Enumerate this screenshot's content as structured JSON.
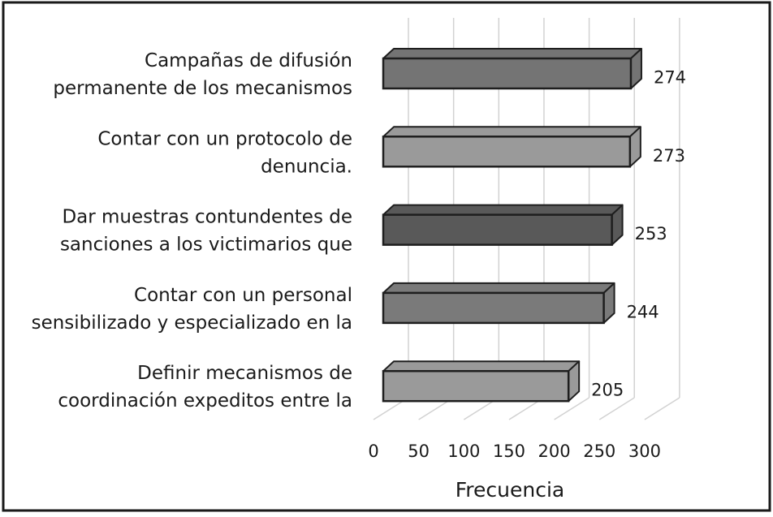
{
  "chart_data": {
    "type": "bar",
    "orientation": "horizontal",
    "style": "3d",
    "categories": [
      [
        "Campañas de difusión",
        "permanente de los mecanismos"
      ],
      [
        "Contar con un protocolo de",
        "denuncia."
      ],
      [
        "Dar muestras contundentes de",
        "sanciones a los victimarios que"
      ],
      [
        "Contar con un personal",
        "sensibilizado y especializado en la"
      ],
      [
        "Definir mecanismos de",
        "coordinación expeditos entre la"
      ]
    ],
    "values": [
      274,
      273,
      253,
      244,
      205
    ],
    "value_labels": [
      "274",
      "273",
      "253",
      "244",
      "205"
    ],
    "xlabel": "Frecuencia",
    "xlim": [
      0,
      300
    ],
    "xticks": [
      "0",
      "50",
      "100",
      "150",
      "200",
      "250",
      "300"
    ],
    "grid": true,
    "legend": "none",
    "colors": {
      "bar_fill": [
        "#747474",
        "#9a9a9a",
        "#595959",
        "#7a7a7a",
        "#9a9a9a"
      ],
      "bar_stroke": "#1e1e1e",
      "grid": "#d2d2d2",
      "frame": "#1a1a1a"
    }
  }
}
